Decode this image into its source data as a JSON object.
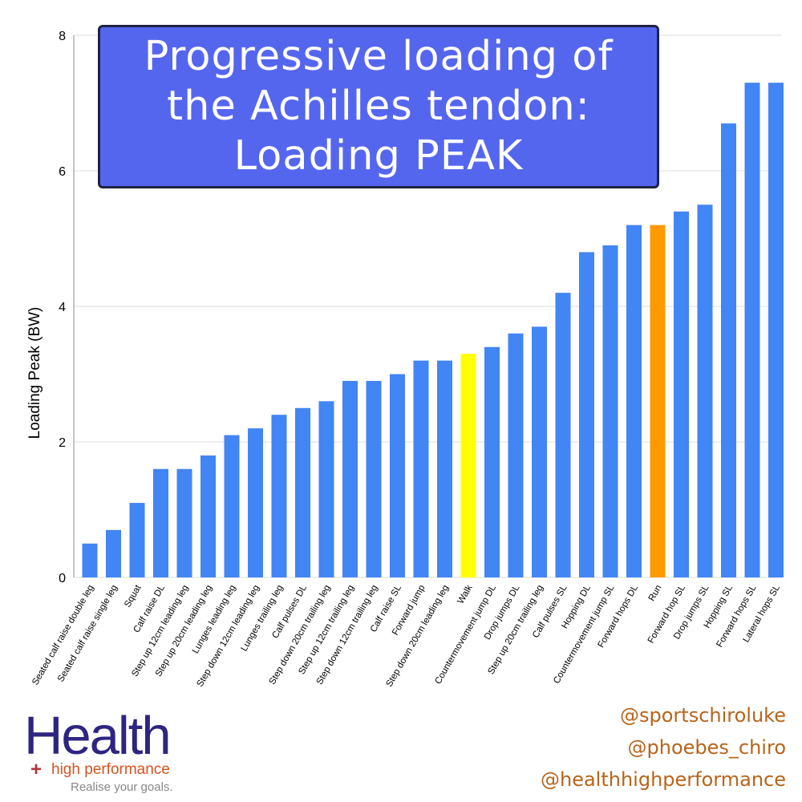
{
  "chart_data": {
    "type": "bar",
    "title": [
      "Progressive loading of",
      "the Achilles tendon:",
      "Loading PEAK"
    ],
    "xlabel": "",
    "ylabel": "Loading Peak (BW)",
    "ylim": [
      0,
      8
    ],
    "yticks": [
      0,
      2,
      4,
      6,
      8
    ],
    "grid": true,
    "categories": [
      "Seated calf raise double leg",
      "Seated calf raise single leg",
      "Squat",
      "Calf raise DL",
      "Step up 12cm leading leg",
      "Step up 20cm leading leg",
      "Lunges leading leg",
      "Step down 12cm leading leg",
      "Lunges trailing leg",
      "Calf pulses DL",
      "Step down 20cm trailing leg",
      "Step up 12cm trailing leg",
      "Step down 12cm trailing leg",
      "Calf raise SL",
      "Forward jump",
      "Step down 20cm leading leg",
      "Walk",
      "Countermovement jump DL",
      "Drop jumps DL",
      "Step up 20cm trailing leg",
      "Calf pulses SL",
      "Hopping DL",
      "Countermovement jump SL",
      "Forward hops DL",
      "Run",
      "Forward hop SL",
      "Drop jumps SL",
      "Hopping SL",
      "Forward hops SL",
      "Lateral hops SL"
    ],
    "values": [
      0.5,
      0.7,
      1.1,
      1.6,
      1.6,
      1.8,
      2.1,
      2.2,
      2.4,
      2.5,
      2.6,
      2.9,
      2.9,
      3.0,
      3.2,
      3.2,
      3.3,
      3.4,
      3.6,
      3.7,
      4.2,
      4.8,
      4.9,
      5.2,
      5.2,
      5.4,
      5.5,
      6.7,
      7.3,
      7.3
    ],
    "colors": {
      "default": "#4285f4",
      "Walk": "#ffff00",
      "Run": "#ff9900",
      "grid": "#dddddd"
    }
  },
  "logo": {
    "main": "Health",
    "plus": "+",
    "sub": "high performance",
    "tagline": "Realise your goals."
  },
  "handles": [
    "@sportschiroluke",
    "@phoebes_chiro",
    "@healthhighperformance"
  ]
}
